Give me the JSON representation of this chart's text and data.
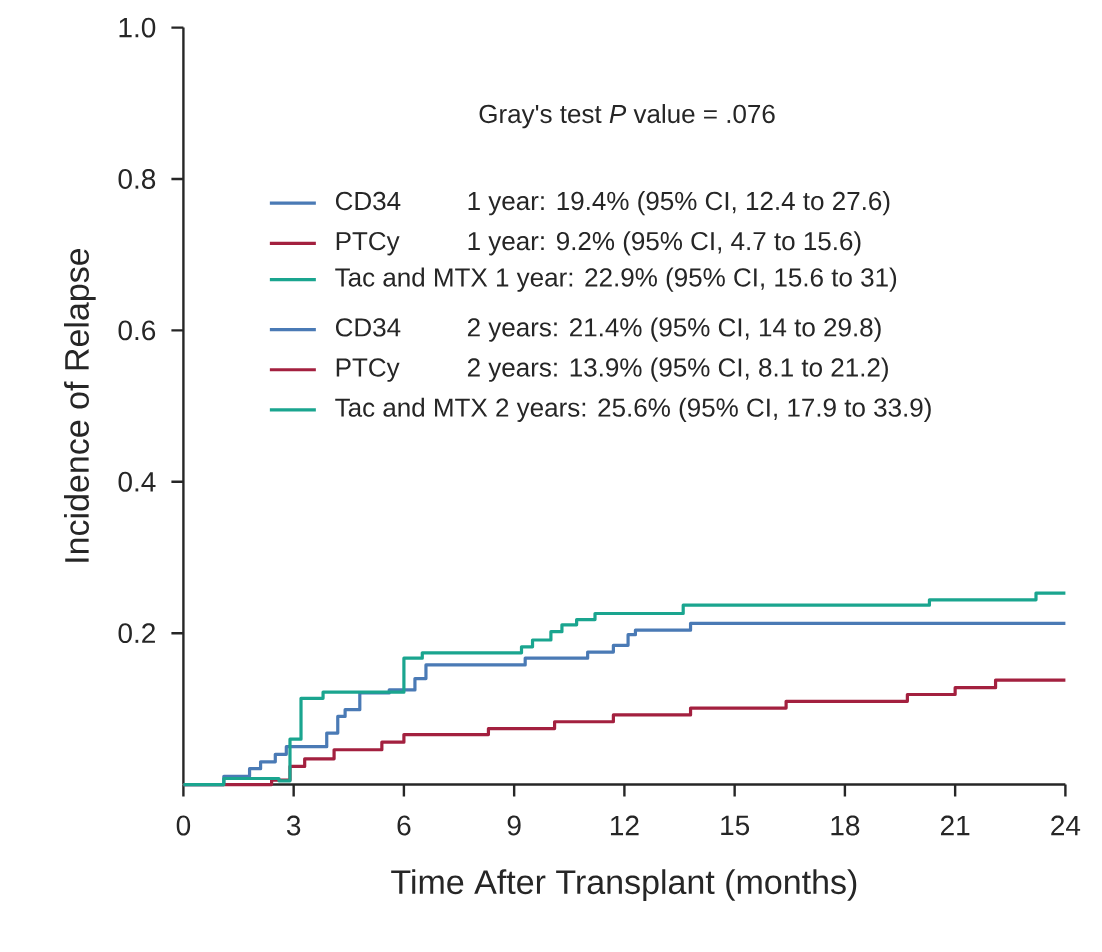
{
  "chart_data": {
    "type": "step",
    "xlabel": "Time After Transplant (months)",
    "ylabel": "Incidence of Relapse",
    "xlim": [
      0,
      24
    ],
    "ylim": [
      0,
      1
    ],
    "xticks": [
      0,
      3,
      6,
      9,
      12,
      15,
      18,
      21,
      24
    ],
    "yticks": [
      {
        "value": 0.2,
        "label": "0.2"
      },
      {
        "value": 0.4,
        "label": "0.4"
      },
      {
        "value": 0.6,
        "label": "0.6"
      },
      {
        "value": 0.8,
        "label": "0.8"
      },
      {
        "value": 1.0,
        "label": "1.0"
      }
    ],
    "legend": "top",
    "grid": false,
    "annotations": [
      "Gray's test *P* value = .076",
      "1 year: 19.4% (95% CI, 12.4 to 27.6)",
      "1 year: 9.2% (95% CI, 4.7 to 15.6)",
      "1 year: 22.9% (95% CI, 15.6 to 31)",
      "2 years: 21.4% (95% CI, 14 to 29.8)",
      "2 years: 13.9% (95% CI, 8.1 to 21.2)",
      "2 years: 25.6% (95% CI, 17.9 to 33.9)"
    ],
    "series": [
      {
        "name": "CD34",
        "color": "#4a7ab5",
        "x": [
          0,
          1.1,
          1.8,
          2.1,
          2.5,
          2.8,
          3.9,
          4.2,
          4.4,
          4.8,
          5.6,
          6.3,
          6.6,
          9.3,
          11.0,
          11.7,
          12.1,
          12.3,
          13.8,
          24
        ],
        "values": [
          0,
          0.011,
          0.021,
          0.03,
          0.04,
          0.05,
          0.068,
          0.09,
          0.099,
          0.121,
          0.125,
          0.14,
          0.158,
          0.167,
          0.175,
          0.184,
          0.198,
          0.204,
          0.213,
          0.213
        ]
      },
      {
        "name": "PTCy",
        "color": "#a3203f",
        "x": [
          0,
          2.4,
          2.9,
          3.3,
          4.1,
          5.4,
          6.0,
          8.3,
          10.1,
          11.7,
          13.8,
          16.4,
          19.7,
          21.0,
          22.1,
          24
        ],
        "values": [
          0,
          0.006,
          0.024,
          0.034,
          0.046,
          0.056,
          0.066,
          0.074,
          0.083,
          0.092,
          0.101,
          0.11,
          0.119,
          0.128,
          0.138,
          0.138
        ]
      },
      {
        "name": "Tac and MTX",
        "color": "#1aa58f",
        "x": [
          0,
          1.1,
          2.6,
          2.9,
          3.2,
          3.8,
          6.0,
          6.5,
          9.2,
          9.5,
          10.0,
          10.3,
          10.7,
          11.2,
          13.6,
          20.3,
          23.2,
          24
        ],
        "values": [
          0,
          0.008,
          0.005,
          0.06,
          0.114,
          0.122,
          0.167,
          0.174,
          0.182,
          0.191,
          0.202,
          0.211,
          0.218,
          0.226,
          0.237,
          0.244,
          0.253,
          0.253
        ]
      }
    ]
  }
}
